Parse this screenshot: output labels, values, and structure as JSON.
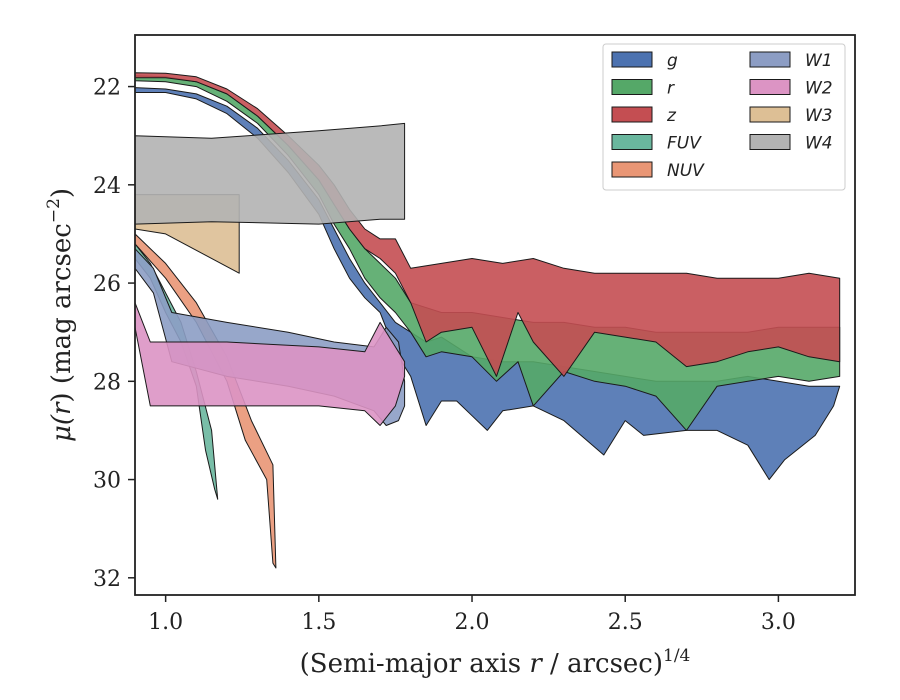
{
  "chart_data": {
    "type": "area",
    "xlabel_main": "(Semi-major axis ",
    "xlabel_var": "r",
    "xlabel_tail": " / arcsec)",
    "xlabel_sup": "1/4",
    "ylabel_mu": "μ(",
    "ylabel_var": "r",
    "ylabel_mid": ") (mag arcsec",
    "ylabel_sup": "−2",
    "ylabel_end": ")",
    "xlim": [
      0.9,
      3.25
    ],
    "ylim": [
      32.35,
      20.95
    ],
    "y_inverted": true,
    "xticks": [
      1.0,
      1.5,
      2.0,
      2.5,
      3.0
    ],
    "xtick_labels": [
      "1.0",
      "1.5",
      "2.0",
      "2.5",
      "3.0"
    ],
    "yticks": [
      22,
      24,
      26,
      28,
      30,
      32
    ],
    "ytick_labels": [
      "22",
      "24",
      "26",
      "28",
      "30",
      "32"
    ],
    "grid": false,
    "legend": {
      "placement": "top-right",
      "columns": 2
    },
    "series": [
      {
        "name": "g",
        "color": "#4c72b0",
        "upper": [
          [
            0.9,
            22.02
          ],
          [
            1.0,
            22.05
          ],
          [
            1.1,
            22.15
          ],
          [
            1.2,
            22.4
          ],
          [
            1.3,
            22.85
          ],
          [
            1.4,
            23.5
          ],
          [
            1.5,
            24.3
          ],
          [
            1.55,
            24.9
          ],
          [
            1.6,
            25.5
          ],
          [
            1.65,
            26.0
          ],
          [
            1.7,
            26.4
          ],
          [
            1.75,
            26.8
          ],
          [
            1.8,
            27.0
          ],
          [
            1.85,
            27.2
          ],
          [
            1.9,
            27.1
          ],
          [
            1.95,
            27.3
          ],
          [
            2.0,
            27.5
          ],
          [
            2.1,
            27.6
          ],
          [
            2.2,
            27.6
          ],
          [
            2.3,
            27.7
          ],
          [
            2.4,
            27.8
          ],
          [
            2.5,
            27.9
          ],
          [
            2.6,
            28.0
          ],
          [
            2.7,
            28.0
          ],
          [
            2.8,
            28.0
          ],
          [
            2.9,
            27.9
          ],
          [
            3.0,
            28.0
          ],
          [
            3.1,
            28.1
          ],
          [
            3.2,
            28.1
          ]
        ],
        "lower": [
          [
            0.9,
            22.12
          ],
          [
            1.0,
            22.12
          ],
          [
            1.1,
            22.25
          ],
          [
            1.2,
            22.55
          ],
          [
            1.3,
            23.05
          ],
          [
            1.4,
            23.75
          ],
          [
            1.5,
            24.6
          ],
          [
            1.55,
            25.3
          ],
          [
            1.6,
            25.9
          ],
          [
            1.65,
            26.3
          ],
          [
            1.7,
            26.6
          ],
          [
            1.75,
            27.4
          ],
          [
            1.8,
            27.9
          ],
          [
            1.85,
            28.9
          ],
          [
            1.9,
            28.4
          ],
          [
            1.95,
            28.4
          ],
          [
            2.0,
            28.7
          ],
          [
            2.05,
            29.0
          ],
          [
            2.1,
            28.6
          ],
          [
            2.2,
            28.5
          ],
          [
            2.3,
            28.8
          ],
          [
            2.43,
            29.5
          ],
          [
            2.5,
            28.8
          ],
          [
            2.56,
            29.1
          ],
          [
            2.7,
            29.0
          ],
          [
            2.8,
            29.0
          ],
          [
            2.9,
            29.3
          ],
          [
            2.97,
            30.0
          ],
          [
            3.02,
            29.6
          ],
          [
            3.12,
            29.1
          ],
          [
            3.18,
            28.5
          ]
        ]
      },
      {
        "name": "r",
        "color": "#55a868",
        "upper": [
          [
            0.9,
            21.78
          ],
          [
            1.0,
            21.8
          ],
          [
            1.1,
            21.9
          ],
          [
            1.2,
            22.15
          ],
          [
            1.3,
            22.6
          ],
          [
            1.4,
            23.2
          ],
          [
            1.5,
            23.9
          ],
          [
            1.55,
            24.4
          ],
          [
            1.6,
            24.9
          ],
          [
            1.65,
            25.3
          ],
          [
            1.7,
            25.6
          ],
          [
            1.75,
            25.9
          ],
          [
            1.8,
            26.4
          ],
          [
            1.9,
            26.6
          ],
          [
            2.0,
            26.6
          ],
          [
            2.1,
            26.7
          ],
          [
            2.2,
            26.8
          ],
          [
            2.3,
            26.8
          ],
          [
            2.4,
            26.9
          ],
          [
            2.5,
            26.9
          ],
          [
            2.6,
            27.0
          ],
          [
            2.7,
            27.0
          ],
          [
            2.8,
            27.0
          ],
          [
            2.9,
            27.0
          ],
          [
            3.0,
            26.9
          ],
          [
            3.1,
            26.9
          ],
          [
            3.2,
            26.9
          ]
        ],
        "lower": [
          [
            0.9,
            21.88
          ],
          [
            1.0,
            21.9
          ],
          [
            1.1,
            22.0
          ],
          [
            1.2,
            22.3
          ],
          [
            1.3,
            22.75
          ],
          [
            1.4,
            23.4
          ],
          [
            1.5,
            24.2
          ],
          [
            1.55,
            24.8
          ],
          [
            1.6,
            25.3
          ],
          [
            1.65,
            25.9
          ],
          [
            1.7,
            26.3
          ],
          [
            1.75,
            26.6
          ],
          [
            1.8,
            27.0
          ],
          [
            1.85,
            27.5
          ],
          [
            1.9,
            27.4
          ],
          [
            2.0,
            27.5
          ],
          [
            2.08,
            28.0
          ],
          [
            2.15,
            27.6
          ],
          [
            2.2,
            28.5
          ],
          [
            2.3,
            27.8
          ],
          [
            2.4,
            28.0
          ],
          [
            2.5,
            28.1
          ],
          [
            2.6,
            28.3
          ],
          [
            2.7,
            29.0
          ],
          [
            2.8,
            28.1
          ],
          [
            2.9,
            28.0
          ],
          [
            3.0,
            27.9
          ],
          [
            3.1,
            28.0
          ],
          [
            3.2,
            27.9
          ]
        ]
      },
      {
        "name": "z",
        "color": "#c44e52",
        "upper": [
          [
            0.9,
            21.72
          ],
          [
            1.0,
            21.73
          ],
          [
            1.1,
            21.8
          ],
          [
            1.2,
            22.05
          ],
          [
            1.3,
            22.45
          ],
          [
            1.4,
            23.0
          ],
          [
            1.5,
            23.6
          ],
          [
            1.55,
            24.0
          ],
          [
            1.6,
            24.5
          ],
          [
            1.65,
            24.9
          ],
          [
            1.7,
            25.1
          ],
          [
            1.75,
            25.1
          ],
          [
            1.8,
            25.7
          ],
          [
            1.9,
            25.6
          ],
          [
            2.0,
            25.5
          ],
          [
            2.1,
            25.6
          ],
          [
            2.2,
            25.5
          ],
          [
            2.3,
            25.7
          ],
          [
            2.4,
            25.8
          ],
          [
            2.5,
            25.8
          ],
          [
            2.6,
            25.8
          ],
          [
            2.7,
            25.8
          ],
          [
            2.8,
            25.9
          ],
          [
            2.9,
            25.9
          ],
          [
            3.0,
            25.9
          ],
          [
            3.1,
            25.8
          ],
          [
            3.2,
            25.9
          ]
        ],
        "lower": [
          [
            0.9,
            21.82
          ],
          [
            1.0,
            21.82
          ],
          [
            1.1,
            21.9
          ],
          [
            1.2,
            22.15
          ],
          [
            1.3,
            22.6
          ],
          [
            1.4,
            23.2
          ],
          [
            1.5,
            23.9
          ],
          [
            1.55,
            24.4
          ],
          [
            1.6,
            24.9
          ],
          [
            1.65,
            25.3
          ],
          [
            1.7,
            25.5
          ],
          [
            1.75,
            25.8
          ],
          [
            1.8,
            26.4
          ],
          [
            1.85,
            27.2
          ],
          [
            1.9,
            27.0
          ],
          [
            2.0,
            26.9
          ],
          [
            2.08,
            27.9
          ],
          [
            2.15,
            26.6
          ],
          [
            2.2,
            27.2
          ],
          [
            2.3,
            27.9
          ],
          [
            2.4,
            27.0
          ],
          [
            2.5,
            27.1
          ],
          [
            2.6,
            27.2
          ],
          [
            2.7,
            27.7
          ],
          [
            2.8,
            27.6
          ],
          [
            2.9,
            27.4
          ],
          [
            3.0,
            27.3
          ],
          [
            3.1,
            27.5
          ],
          [
            3.2,
            27.6
          ]
        ]
      },
      {
        "name": "FUV",
        "color": "#6ab79e",
        "upper": [
          [
            0.9,
            25.2
          ],
          [
            0.95,
            25.6
          ],
          [
            1.0,
            26.2
          ],
          [
            1.05,
            26.8
          ],
          [
            1.1,
            27.8
          ],
          [
            1.15,
            29.0
          ],
          [
            1.17,
            30.4
          ]
        ],
        "lower": [
          [
            0.9,
            25.5
          ],
          [
            0.95,
            25.9
          ],
          [
            1.0,
            26.6
          ],
          [
            1.05,
            27.2
          ],
          [
            1.1,
            28.1
          ],
          [
            1.13,
            29.4
          ],
          [
            1.16,
            30.2
          ]
        ]
      },
      {
        "name": "NUV",
        "color": "#e99675",
        "upper": [
          [
            0.9,
            25.0
          ],
          [
            1.0,
            25.6
          ],
          [
            1.1,
            26.4
          ],
          [
            1.2,
            27.5
          ],
          [
            1.28,
            28.8
          ],
          [
            1.35,
            29.7
          ],
          [
            1.36,
            31.8
          ]
        ],
        "lower": [
          [
            0.9,
            25.2
          ],
          [
            1.0,
            25.9
          ],
          [
            1.1,
            26.8
          ],
          [
            1.2,
            28.0
          ],
          [
            1.26,
            29.2
          ],
          [
            1.33,
            30.0
          ],
          [
            1.35,
            31.7
          ]
        ]
      },
      {
        "name": "W1",
        "color": "#8c9dc4",
        "upper": [
          [
            0.9,
            25.3
          ],
          [
            0.96,
            25.7
          ],
          [
            1.02,
            26.6
          ],
          [
            1.2,
            26.8
          ],
          [
            1.4,
            27.0
          ],
          [
            1.55,
            27.2
          ],
          [
            1.68,
            27.3
          ],
          [
            1.72,
            26.9
          ],
          [
            1.76,
            27.2
          ],
          [
            1.78,
            28.0
          ]
        ],
        "lower": [
          [
            0.9,
            25.7
          ],
          [
            0.96,
            26.2
          ],
          [
            1.02,
            27.6
          ],
          [
            1.2,
            27.9
          ],
          [
            1.4,
            28.1
          ],
          [
            1.55,
            28.3
          ],
          [
            1.68,
            28.6
          ],
          [
            1.72,
            28.9
          ],
          [
            1.76,
            28.8
          ],
          [
            1.78,
            28.5
          ]
        ]
      },
      {
        "name": "W2",
        "color": "#dc94c4",
        "upper": [
          [
            0.9,
            26.4
          ],
          [
            0.95,
            27.2
          ],
          [
            1.2,
            27.2
          ],
          [
            1.5,
            27.3
          ],
          [
            1.65,
            27.4
          ],
          [
            1.7,
            26.8
          ],
          [
            1.75,
            27.3
          ],
          [
            1.78,
            27.6
          ]
        ],
        "lower": [
          [
            0.9,
            26.9
          ],
          [
            0.95,
            28.5
          ],
          [
            1.2,
            28.5
          ],
          [
            1.5,
            28.5
          ],
          [
            1.65,
            28.6
          ],
          [
            1.7,
            28.9
          ],
          [
            1.75,
            28.5
          ],
          [
            1.78,
            27.9
          ]
        ]
      },
      {
        "name": "W3",
        "color": "#ddbf95",
        "upper": [
          [
            0.9,
            24.2
          ],
          [
            1.0,
            24.2
          ],
          [
            1.24,
            24.2
          ]
        ],
        "lower": [
          [
            0.9,
            24.9
          ],
          [
            1.0,
            25.0
          ],
          [
            1.24,
            25.8
          ]
        ]
      },
      {
        "name": "W4",
        "color": "#b3b3b3",
        "upper": [
          [
            0.9,
            23.0
          ],
          [
            1.15,
            23.05
          ],
          [
            1.5,
            22.9
          ],
          [
            1.7,
            22.8
          ],
          [
            1.78,
            22.75
          ]
        ],
        "lower": [
          [
            0.9,
            24.8
          ],
          [
            1.15,
            24.75
          ],
          [
            1.5,
            24.8
          ],
          [
            1.7,
            24.7
          ],
          [
            1.78,
            24.7
          ]
        ]
      }
    ]
  }
}
